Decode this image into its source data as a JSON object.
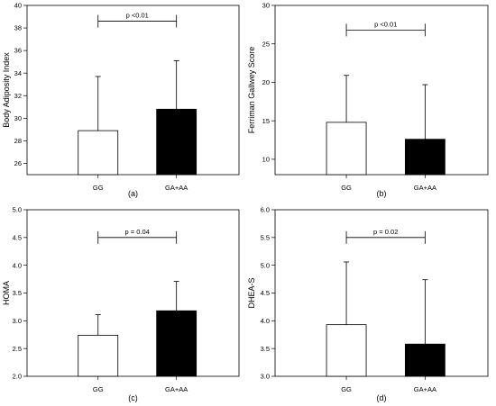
{
  "chart_data": [
    {
      "type": "bar",
      "panel_label": "(a)",
      "ylabel": "Body Adiposity Index",
      "ylim": [
        25,
        40
      ],
      "yticks": [
        "26",
        "28",
        "30",
        "32",
        "34",
        "36",
        "38",
        "40"
      ],
      "categories": [
        "GG",
        "GA+AA"
      ],
      "values": [
        28.9,
        30.8
      ],
      "errors": [
        4.8,
        4.3
      ],
      "bar_colors": [
        "#ffffff",
        "#000000"
      ],
      "significance": {
        "text": "p <0.01",
        "y": 38.6
      },
      "grid": false
    },
    {
      "type": "bar",
      "panel_label": "(b)",
      "ylabel": "Ferriman Gallwey Score",
      "ylim": [
        8,
        30
      ],
      "yticks": [
        "10",
        "15",
        "20",
        "25",
        "30"
      ],
      "categories": [
        "GG",
        "GA+AA"
      ],
      "values": [
        14.8,
        12.6
      ],
      "errors": [
        6.1,
        7.1
      ],
      "bar_colors": [
        "#ffffff",
        "#000000"
      ],
      "significance": {
        "text": "p <0.01",
        "y": 26.8
      },
      "grid": false
    },
    {
      "type": "bar",
      "panel_label": "(c)",
      "ylabel": "HOMA",
      "ylim": [
        2.0,
        5.0
      ],
      "yticks": [
        "2.0",
        "2.5",
        "3.0",
        "3.5",
        "4.0",
        "4.5",
        "5.0"
      ],
      "categories": [
        "GG",
        "GA+AA"
      ],
      "values": [
        2.74,
        3.18
      ],
      "errors": [
        0.37,
        0.53
      ],
      "bar_colors": [
        "#ffffff",
        "#000000"
      ],
      "significance": {
        "text": "p = 0.04",
        "y": 4.5
      },
      "grid": false
    },
    {
      "type": "bar",
      "panel_label": "(d)",
      "ylabel": "DHEA-S",
      "ylim": [
        3.0,
        6.0
      ],
      "yticks": [
        "3.0",
        "3.5",
        "4.0",
        "4.5",
        "5.0",
        "5.5",
        "6.0"
      ],
      "categories": [
        "GG",
        "GA+AA"
      ],
      "values": [
        3.93,
        3.58
      ],
      "errors": [
        1.13,
        1.16
      ],
      "bar_colors": [
        "#ffffff",
        "#000000"
      ],
      "significance": {
        "text": "p = 0.02",
        "y": 5.5
      },
      "grid": false
    }
  ]
}
